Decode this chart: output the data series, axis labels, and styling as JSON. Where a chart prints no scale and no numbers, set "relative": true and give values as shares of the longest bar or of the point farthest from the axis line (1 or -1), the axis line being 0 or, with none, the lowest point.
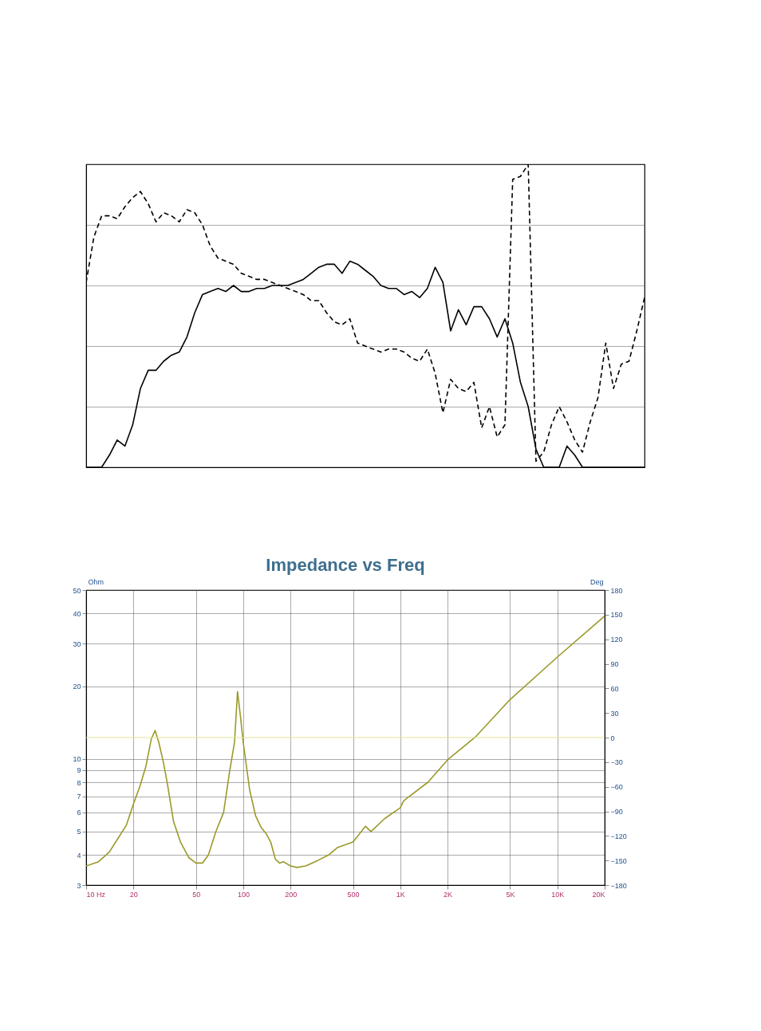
{
  "chart_data": [
    {
      "type": "line",
      "relative": true,
      "grid": "y",
      "tick_labels": false,
      "categories": [
        null,
        null,
        null,
        null,
        null,
        null,
        null,
        null,
        null,
        null,
        null,
        null,
        null,
        null,
        null,
        null,
        null,
        null,
        null,
        null,
        null,
        null,
        null,
        null,
        null,
        null,
        null,
        null,
        null,
        null,
        null,
        null,
        null,
        null,
        null,
        null,
        null,
        null,
        null,
        null,
        null,
        null,
        null,
        null,
        null,
        null,
        null,
        null,
        null,
        null,
        null,
        null,
        null,
        null,
        null,
        null,
        null,
        null,
        null,
        null,
        null,
        null,
        null,
        null,
        null,
        null,
        null,
        null,
        null,
        null,
        null,
        null,
        null
      ],
      "series": [
        {
          "color": "#000000",
          "line_style": "solid",
          "values": [
            0,
            0,
            0,
            0.04,
            0.09,
            0.07,
            0.14,
            0.26,
            0.32,
            0.32,
            0.35,
            0.37,
            0.38,
            0.43,
            0.51,
            0.57,
            0.58,
            0.59,
            0.58,
            0.6,
            0.58,
            0.58,
            0.59,
            0.59,
            0.6,
            0.6,
            0.6,
            0.61,
            0.62,
            0.64,
            0.66,
            0.67,
            0.67,
            0.64,
            0.68,
            0.67,
            0.65,
            0.63,
            0.6,
            0.59,
            0.59,
            0.57,
            0.58,
            0.56,
            0.59,
            0.66,
            0.61,
            0.45,
            0.52,
            0.47,
            0.53,
            0.53,
            0.49,
            0.43,
            0.49,
            0.41,
            0.28,
            0.2,
            0.06,
            0,
            0,
            0,
            0.07,
            0.04,
            0,
            0,
            0,
            0,
            0,
            0,
            0,
            0,
            0
          ]
        },
        {
          "color": "#000000",
          "line_style": "dashed",
          "values": [
            0.61,
            0.76,
            0.83,
            0.83,
            0.82,
            0.86,
            0.89,
            0.91,
            0.87,
            0.81,
            0.84,
            0.83,
            0.81,
            0.85,
            0.84,
            0.8,
            0.73,
            0.69,
            0.68,
            0.67,
            0.64,
            0.63,
            0.62,
            0.62,
            0.61,
            0.6,
            0.59,
            0.58,
            0.57,
            0.55,
            0.55,
            0.51,
            0.48,
            0.47,
            0.49,
            0.41,
            0.4,
            0.39,
            0.38,
            0.39,
            0.39,
            0.38,
            0.36,
            0.35,
            0.39,
            0.31,
            0.18,
            0.29,
            0.26,
            0.25,
            0.28,
            0.13,
            0.2,
            0.1,
            0.14,
            0.95,
            0.96,
            1,
            0.02,
            0.05,
            0.14,
            0.2,
            0.15,
            0.09,
            0.05,
            0.15,
            0.23,
            0.41,
            0.26,
            0.34,
            0.35,
            0.45,
            0.56
          ]
        }
      ]
    },
    {
      "type": "line",
      "title": "Impedance vs Freq",
      "ylabel": "Ohm",
      "y2label": "Deg",
      "log": "xy",
      "grid": true,
      "x": [
        10,
        12,
        14,
        16,
        18,
        20,
        22,
        24,
        26,
        27.5,
        29,
        31,
        33,
        36,
        40,
        45,
        50,
        55,
        60,
        67,
        75,
        82,
        88,
        92,
        96,
        100,
        110,
        120,
        130,
        140,
        150,
        160,
        170,
        180,
        200,
        220,
        250,
        300,
        350,
        400,
        500,
        600,
        650,
        800,
        1000,
        1050,
        1500,
        2000,
        3000,
        5000,
        10000,
        20000
      ],
      "xlim": [
        10,
        20000
      ],
      "xticks": [
        {
          "value": 10,
          "label": "10 Hz"
        },
        20,
        50,
        100,
        200,
        500,
        {
          "value": 1000,
          "label": "1K"
        },
        {
          "value": 2000,
          "label": "2K"
        },
        {
          "value": 5000,
          "label": "5K"
        },
        {
          "value": 10000,
          "label": "10K"
        },
        {
          "value": 20000,
          "label": "20K"
        }
      ],
      "ylim": [
        3,
        50
      ],
      "yticks": [
        3,
        4,
        5,
        6,
        7,
        8,
        9,
        10,
        20,
        30,
        40,
        50
      ],
      "y2lim": [
        -180,
        180
      ],
      "y2ticks": [
        -180,
        -150,
        -120,
        -90,
        -60,
        -30,
        0,
        30,
        60,
        90,
        120,
        150,
        180
      ],
      "series": [
        {
          "color": "#9a9a2a",
          "values": [
            3.6,
            3.75,
            4.1,
            4.7,
            5.3,
            6.5,
            7.7,
            9.3,
            12.1,
            13.1,
            11.7,
            9.7,
            7.8,
            5.5,
            4.5,
            3.9,
            3.7,
            3.7,
            4.0,
            5.0,
            6.0,
            8.9,
            11.7,
            19.0,
            15,
            11.7,
            7.4,
            5.8,
            5.2,
            4.9,
            4.5,
            3.85,
            3.7,
            3.75,
            3.6,
            3.55,
            3.6,
            3.8,
            4.0,
            4.3,
            4.52,
            5.26,
            5.0,
            5.67,
            6.27,
            6.7,
            8.0,
            9.9,
            12.3,
            17.6,
            26.4,
            39.0
          ]
        }
      ],
      "ref_lines": [
        {
          "axis": "y2",
          "value": 0,
          "color": "#e3e39a"
        }
      ]
    }
  ]
}
